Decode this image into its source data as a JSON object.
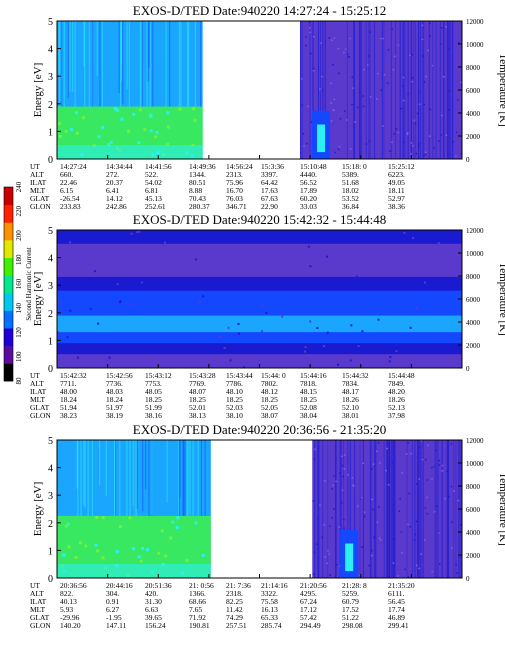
{
  "chart_data": {
    "type": "heatmap",
    "colors": {
      "deep": "#1a1ad0",
      "purple": "#5a3acc",
      "blue": "#1448ff",
      "sky": "#1aa6ff",
      "cyan": "#2cf0f0",
      "green": "#38e860",
      "gap": "#ffffff"
    },
    "colorbar": {
      "label": "Second Harmonic Current",
      "ticks": [
        "80",
        "100",
        "120",
        "140",
        "160",
        "180",
        "200",
        "220",
        "240"
      ],
      "colors": [
        "#000000",
        "#5a0ca0",
        "#2000d8",
        "#0070ff",
        "#00c8f0",
        "#00e890",
        "#40f000",
        "#e0e800",
        "#ff9000",
        "#ff2000",
        "#c80000"
      ]
    },
    "panels": [
      {
        "title": "EXOS-D/TED   Date:940220   14:27:24 - 15:25:12",
        "ylabel": "Energy [eV]",
        "y2label": "Temperature [K]",
        "yticks": [
          "0",
          "1",
          "2",
          "3",
          "4",
          "5"
        ],
        "y2ticks": [
          "0",
          "2000",
          "4000",
          "6000",
          "8000",
          "10000",
          "12000"
        ],
        "ylim": [
          0,
          5
        ],
        "y2lim": [
          0,
          12000
        ],
        "gap": [
          0.36,
          0.6
        ],
        "style": "top",
        "table": {
          "labels": [
            "UT",
            "ALT",
            "ILAT",
            "MLT",
            "GLAT",
            "GLON"
          ],
          "columns": [
            [
              "14:27:24",
              "660.",
              "22.46",
              "6.15",
              "-26.54",
              "233.83"
            ],
            [
              "14:34:44",
              "272.",
              "20.37",
              "6.41",
              "14.12",
              "242.86"
            ],
            [
              "14:41:56",
              "522.",
              "54.02",
              "6.81",
              "45.13",
              "252.61"
            ],
            [
              "14:49:36",
              "1344.",
              "80.51",
              "8.88",
              "70.43",
              "280.37"
            ],
            [
              "14:56:24",
              "2313.",
              "75.96",
              "16.70",
              "76.03",
              "346.71"
            ],
            [
              "15:3:36",
              "3397.",
              "64.42",
              "17.63",
              "67.63",
              "22.90"
            ],
            [
              "15:10:48",
              "4440.",
              "56.52",
              "17.89",
              "60.20",
              "33.03"
            ],
            [
              "15:18: 0",
              "5389.",
              "51.68",
              "18.02",
              "53.52",
              "36.84"
            ],
            [
              "15:25:12",
              "6223.",
              "49.05",
              "18.11",
              "52.97",
              "38.36"
            ]
          ]
        }
      },
      {
        "title": "EXOS-D/TED   Date:940220   15:42:32 - 15:44:48",
        "ylabel": "Energy [eV]",
        "y2label": "Temperature [K]",
        "yticks": [
          "0",
          "1",
          "2",
          "3",
          "4",
          "5"
        ],
        "y2ticks": [
          "0",
          "2000",
          "4000",
          "6000",
          "8000",
          "10000",
          "12000"
        ],
        "ylim": [
          0,
          5
        ],
        "y2lim": [
          0,
          12000
        ],
        "gap": null,
        "style": "middle",
        "table": {
          "labels": [
            "UT",
            "ALT",
            "ILAT",
            "MLT",
            "GLAT",
            "GLON"
          ],
          "columns": [
            [
              "15:42:32",
              "7711.",
              "48.00",
              "18.24",
              "51.94",
              "38.23"
            ],
            [
              "15:42:56",
              "7736.",
              "48.03",
              "18.24",
              "51.97",
              "38.19"
            ],
            [
              "15:43:12",
              "7753.",
              "48.05",
              "18.25",
              "51.99",
              "38.16"
            ],
            [
              "15:43:28",
              "7769.",
              "48.07",
              "18.25",
              "52.01",
              "38.13"
            ],
            [
              "15:43:44",
              "7786.",
              "48.10",
              "18.25",
              "52.03",
              "38.10"
            ],
            [
              "15:44: 0",
              "7802.",
              "48.12",
              "18.25",
              "52.05",
              "38.07"
            ],
            [
              "15:44:16",
              "7818.",
              "48.15",
              "18.25",
              "52.08",
              "38.04"
            ],
            [
              "15:44:32",
              "7834.",
              "48.17",
              "18.26",
              "52.10",
              "38.01"
            ],
            [
              "15:44:48",
              "7849.",
              "48.20",
              "18.26",
              "52.13",
              "37.98"
            ]
          ]
        }
      },
      {
        "title": "EXOS-D/TED   Date:940220   20:36:56 - 21:35:20",
        "ylabel": "Energy [eV]",
        "y2label": "Temperature [K]",
        "yticks": [
          "0",
          "1",
          "2",
          "3",
          "4",
          "5"
        ],
        "y2ticks": [
          "0",
          "2000",
          "4000",
          "6000",
          "8000",
          "10000",
          "12000"
        ],
        "ylim": [
          0,
          5
        ],
        "y2lim": [
          0,
          12000
        ],
        "gap": [
          0.38,
          0.63
        ],
        "style": "bottom",
        "table": {
          "labels": [
            "UT",
            "ALT",
            "ILAT",
            "MLT",
            "GLAT",
            "GLON"
          ],
          "columns": [
            [
              "20:36:56",
              "822.",
              "40.13",
              "5.93",
              "-29.96",
              "140.20"
            ],
            [
              "20:44:16",
              "304.",
              "0.91",
              "6.27",
              "-1.95",
              "147.11"
            ],
            [
              "20:51:36",
              "420.",
              "31.30",
              "6.63",
              "39.65",
              "156.24"
            ],
            [
              "21: 0:56",
              "1366.",
              "68.66",
              "7.65",
              "71.92",
              "190.81"
            ],
            [
              "21: 7:36",
              "2318.",
              "82.25",
              "11.42",
              "74.29",
              "257.51"
            ],
            [
              "21:14:16",
              "3322.",
              "75.58",
              "16.13",
              "65.33",
              "285.74"
            ],
            [
              "21:20:56",
              "4295.",
              "67.24",
              "17.12",
              "57.42",
              "294.49"
            ],
            [
              "21:28: 8",
              "5259.",
              "60.79",
              "17.52",
              "51.22",
              "298.08"
            ],
            [
              "21:35:20",
              "6111.",
              "56.45",
              "17.74",
              "46.89",
              "299.41"
            ]
          ]
        }
      }
    ]
  }
}
